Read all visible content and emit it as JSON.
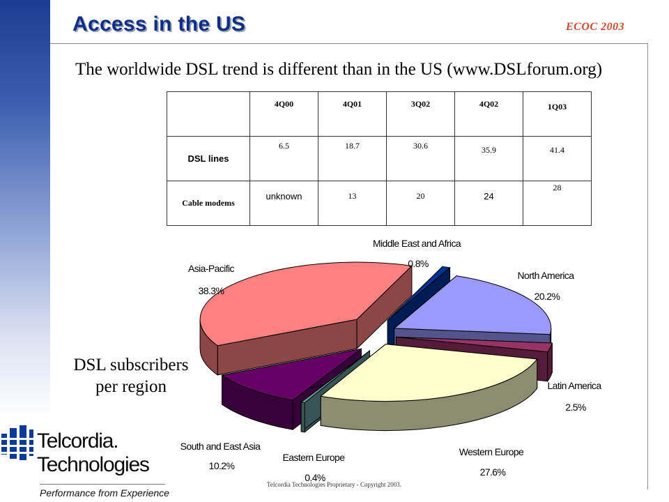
{
  "slide": {
    "title": "Access in the US",
    "conference": "ECOC  2003",
    "subtitle": "The worldwide DSL trend is different than in the US (www.DSLforum.org)",
    "caption_line1": "DSL subscribers",
    "caption_line2": "per region",
    "footer": "Telcordia Technologies Proprietary - Copyright 2003.",
    "logo_line1": "Telcordia.",
    "logo_line2": "Technologies",
    "tagline": "Performance from Experience"
  },
  "table": {
    "columns": [
      "4Q00",
      "4Q01",
      "3Q02",
      "4Q02",
      "1Q03"
    ],
    "rows": [
      {
        "label": "DSL lines",
        "values": [
          "6.5",
          "18.7",
          "30.6",
          "35.9",
          "41.4"
        ]
      },
      {
        "label": "Cable modems",
        "values": [
          "unknown",
          "13",
          "20",
          "24",
          "28"
        ]
      }
    ]
  },
  "chart_data": {
    "type": "pie",
    "title": "",
    "slices": [
      {
        "label": "North America",
        "value_label": "20.2%",
        "value": 20.2,
        "color": "#9999ff"
      },
      {
        "label": "Latin America",
        "value_label": "2.5%",
        "value": 2.5,
        "color": "#993366"
      },
      {
        "label": "Western Europe",
        "value_label": "27.6%",
        "value": 27.6,
        "color": "#ffffcc"
      },
      {
        "label": "Eastern Europe",
        "value_label": "0.4%",
        "value": 0.4,
        "color": "#669999"
      },
      {
        "label": "South and East Asia",
        "value_label": "10.2%",
        "value": 10.2,
        "color": "#660066"
      },
      {
        "label": "Asia-Pacific",
        "value_label": "38.3%",
        "value": 38.3,
        "color": "#ff8080"
      },
      {
        "label": "Middle East and Africa",
        "value_label": "0.8%",
        "value": 0.8,
        "color": "#003399"
      }
    ]
  }
}
